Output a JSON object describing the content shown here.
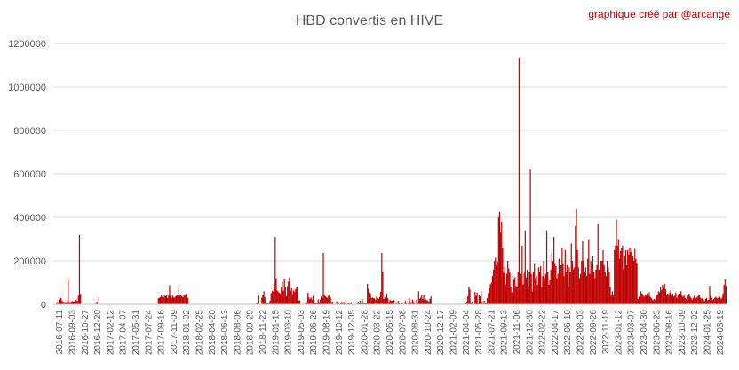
{
  "chart_data": {
    "type": "bar",
    "title": "HBD convertis en HIVE",
    "credit": "graphique créé par @arcange",
    "xlabel": "",
    "ylabel": "",
    "ylim": [
      0,
      1200000
    ],
    "yticks": [
      "0",
      "200000",
      "400000",
      "600000",
      "800000",
      "1000000",
      "1200000"
    ],
    "grid": true,
    "bar_color": "#c00000",
    "x_tick_labels": [
      "2016-07-11",
      "2016-09-03",
      "2016-10-27",
      "2016-12-20",
      "2017-02-12",
      "2017-04-07",
      "2017-05-31",
      "2017-07-24",
      "2017-09-16",
      "2017-11-09",
      "2018-01-02",
      "2018-02-25",
      "2018-04-20",
      "2018-06-13",
      "2018-08-06",
      "2018-09-29",
      "2018-11-22",
      "2019-01-15",
      "2019-03-10",
      "2019-05-03",
      "2019-06-26",
      "2019-08-19",
      "2019-10-12",
      "2019-12-05",
      "2020-01-28",
      "2020-03-22",
      "2020-05-15",
      "2020-07-08",
      "2020-08-31",
      "2020-10-24",
      "2020-12-17",
      "2021-02-09",
      "2021-04-04",
      "2021-05-28",
      "2021-07-21",
      "2021-09-13",
      "2021-11-06",
      "2021-12-30",
      "2022-02-22",
      "2022-04-17",
      "2022-06-10",
      "2022-08-03",
      "2022-09-26",
      "2022-11-19",
      "2023-01-12",
      "2023-03-07",
      "2023-04-30",
      "2023-06-23",
      "2023-08-16",
      "2023-10-09",
      "2023-12-02",
      "2024-01-25",
      "2024-03-19"
    ],
    "series": [
      {
        "values": [
          0,
          0,
          0,
          10000,
          9000,
          22000,
          36000,
          29000,
          18000,
          12000,
          11000,
          8000,
          10000,
          11000,
          113000,
          10000,
          9000,
          12000,
          15000,
          12000,
          14000,
          21000,
          19000,
          15000,
          40000,
          318000,
          48000,
          0,
          0,
          0,
          0,
          0,
          0,
          0,
          0,
          0,
          0,
          0,
          0,
          0,
          0,
          0,
          12000,
          0,
          35000,
          0,
          0,
          0,
          0,
          0,
          0,
          0,
          0,
          0,
          0,
          0,
          0,
          0,
          0,
          0,
          0,
          0,
          0,
          0,
          0,
          0,
          0,
          0,
          0,
          0,
          0,
          0,
          0,
          0,
          0,
          0,
          0,
          0,
          0,
          0,
          0,
          0,
          0,
          0,
          0,
          0,
          0,
          0,
          0,
          0,
          0,
          0,
          0,
          0,
          0,
          0,
          0,
          0,
          0,
          0,
          0,
          0,
          28000,
          30000,
          33000,
          42000,
          35000,
          31000,
          44000,
          38000,
          43000,
          30000,
          45000,
          88000,
          38000,
          31000,
          40000,
          31000,
          32000,
          37000,
          43000,
          44000,
          77000,
          39000,
          41000,
          37000,
          33000,
          44000,
          43000,
          48000,
          30000,
          30000,
          0,
          0,
          0,
          0,
          0,
          0,
          0,
          0,
          0,
          0,
          0,
          0,
          0,
          0,
          0,
          0,
          0,
          0,
          0,
          0,
          0,
          0,
          0,
          0,
          0,
          0,
          0,
          0,
          0,
          0,
          0,
          0,
          0,
          0,
          0,
          0,
          0,
          0,
          0,
          0,
          0,
          0,
          0,
          0,
          0,
          0,
          0,
          0,
          0,
          0,
          0,
          0,
          0,
          0,
          0,
          0,
          0,
          0,
          0,
          0,
          0,
          0,
          0,
          0,
          0,
          0,
          8000,
          8000,
          40000,
          0,
          0,
          31000,
          45000,
          60000,
          32000,
          0,
          5000,
          4000,
          4000,
          17000,
          51000,
          62000,
          58000,
          90000,
          310000,
          120000,
          63000,
          59000,
          53000,
          48000,
          79000,
          105000,
          62000,
          115000,
          78000,
          37000,
          84000,
          105000,
          125000,
          61000,
          73000,
          47000,
          63000,
          58000,
          70000,
          81000,
          78000,
          17000,
          19000,
          0,
          0,
          0,
          0,
          0,
          10000,
          9000,
          53000,
          33000,
          24000,
          31000,
          20000,
          39000,
          12000,
          5000,
          7000,
          5000,
          23000,
          9000,
          22000,
          36000,
          27000,
          237000,
          44000,
          37000,
          32000,
          30000,
          39000,
          43000,
          31000,
          10000,
          12000,
          0,
          0,
          0,
          14000,
          0,
          7000,
          0,
          6000,
          11000,
          0,
          11000,
          8000,
          0,
          0,
          9000,
          5000,
          3000,
          10000,
          2000,
          0,
          0,
          0,
          0,
          0,
          12000,
          5000,
          17000,
          9000,
          24000,
          4000,
          7000,
          6000,
          4000,
          94000,
          72000,
          56000,
          50000,
          29000,
          31000,
          28000,
          27000,
          21000,
          35000,
          29000,
          24000,
          34000,
          58000,
          237000,
          150000,
          24000,
          35000,
          32000,
          50000,
          28000,
          10000,
          21000,
          16000,
          16000,
          19000,
          20000,
          0,
          6000,
          2000,
          16000,
          6000,
          0,
          3000,
          6000,
          0,
          0,
          16000,
          6000,
          0,
          5000,
          28000,
          10000,
          10000,
          22000,
          11000,
          6000,
          0,
          22000,
          8000,
          60000,
          25000,
          31000,
          43000,
          24000,
          43000,
          21000,
          23000,
          19000,
          17000,
          11000,
          25000,
          36000,
          0,
          0,
          0,
          0,
          0,
          0,
          0,
          0,
          0,
          0,
          0,
          0,
          0,
          0,
          0,
          0,
          0,
          0,
          0,
          0,
          0,
          0,
          0,
          0,
          0,
          0,
          0,
          0,
          0,
          0,
          0,
          0,
          0,
          7000,
          12000,
          37000,
          81000,
          68000,
          6000,
          12000,
          0,
          0,
          57000,
          39000,
          54000,
          4000,
          45000,
          36000,
          60000,
          12000,
          0,
          17000,
          5000,
          8000,
          29000,
          52000,
          74000,
          93000,
          100000,
          130000,
          160000,
          200000,
          215000,
          180000,
          195000,
          400000,
          425000,
          330000,
          380000,
          260000,
          145000,
          174000,
          92000,
          140000,
          200000,
          165000,
          145000,
          82000,
          56000,
          145000,
          112000,
          125000,
          85000,
          78000,
          150000,
          1135000,
          130000,
          140000,
          270000,
          92000,
          145000,
          340000,
          124000,
          160000,
          80000,
          150000,
          620000,
          140000,
          60000,
          150000,
          190000,
          120000,
          130000,
          90000,
          170000,
          150000,
          175000,
          80000,
          130000,
          200000,
          120000,
          140000,
          340000,
          150000,
          90000,
          110000,
          160000,
          240000,
          200000,
          310000,
          190000,
          175000,
          120000,
          140000,
          210000,
          150000,
          180000,
          260000,
          190000,
          130000,
          250000,
          150000,
          180000,
          80000,
          170000,
          150000,
          280000,
          200000,
          160000,
          170000,
          360000,
          440000,
          250000,
          170000,
          120000,
          140000,
          200000,
          290000,
          200000,
          150000,
          170000,
          130000,
          210000,
          300000,
          140000,
          200000,
          175000,
          220000,
          150000,
          120000,
          160000,
          180000,
          370000,
          160000,
          140000,
          200000,
          200000,
          250000,
          180000,
          150000,
          130000,
          200000,
          170000,
          150000,
          80000,
          40000,
          60000,
          40000,
          250000,
          270000,
          390000,
          270000,
          300000,
          210000,
          245000,
          260000,
          270000,
          160000,
          225000,
          250000,
          180000,
          250000,
          230000,
          260000,
          240000,
          260000,
          220000,
          200000,
          255000,
          210000,
          190000,
          25000,
          35000,
          45000,
          60000,
          50000,
          40000,
          35000,
          45000,
          40000,
          50000,
          40000,
          55000,
          35000,
          30000,
          22000,
          18000,
          25000,
          20000,
          40000,
          45000,
          60000,
          55000,
          80000,
          65000,
          90000,
          75000,
          95000,
          70000,
          45000,
          50000,
          40000,
          55000,
          65000,
          40000,
          50000,
          35000,
          45000,
          55000,
          30000,
          40000,
          45000,
          50000,
          60000,
          45000,
          35000,
          40000,
          30000,
          25000,
          35000,
          40000,
          50000,
          35000,
          30000,
          20000,
          30000,
          40000,
          28000,
          30000,
          35000,
          40000,
          45000,
          30000,
          25000,
          30000,
          20000,
          15000,
          25000,
          30000,
          18000,
          22000,
          85000,
          40000,
          30000,
          20000,
          25000,
          30000,
          35000,
          28000,
          30000,
          40000,
          35000,
          25000,
          30000,
          50000,
          90000,
          115000,
          85000
        ]
      }
    ]
  }
}
